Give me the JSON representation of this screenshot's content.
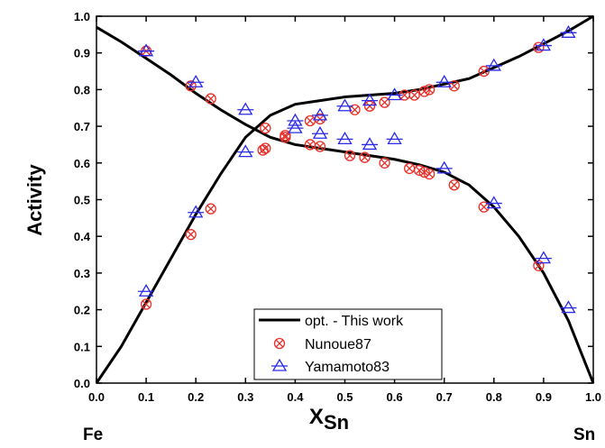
{
  "chart_data": {
    "type": "scatter",
    "ylabel": "Activity",
    "xlabel": "X",
    "xlabel_sub": "Sn",
    "annotations": [
      "Fe",
      "Sn"
    ],
    "xlim": [
      0,
      1
    ],
    "ylim": [
      0,
      1
    ],
    "xticks": [
      {
        "value": 0,
        "label": "0.0"
      },
      {
        "value": 0.1,
        "label": "0.1"
      },
      {
        "value": 0.2,
        "label": "0.2"
      },
      {
        "value": 0.3,
        "label": "0.3"
      },
      {
        "value": 0.4,
        "label": "0.4"
      },
      {
        "value": 0.5,
        "label": "0.5"
      },
      {
        "value": 0.6,
        "label": "0.6"
      },
      {
        "value": 0.7,
        "label": "0.7"
      },
      {
        "value": 0.8,
        "label": "0.8"
      },
      {
        "value": 0.9,
        "label": "0.9"
      },
      {
        "value": 1,
        "label": "1.0"
      }
    ],
    "yticks": [
      {
        "value": 0,
        "label": "0.0"
      },
      {
        "value": 0.1,
        "label": "0.1"
      },
      {
        "value": 0.2,
        "label": "0.2"
      },
      {
        "value": 0.3,
        "label": "0.3"
      },
      {
        "value": 0.4,
        "label": "0.4"
      },
      {
        "value": 0.5,
        "label": "0.5"
      },
      {
        "value": 0.6,
        "label": "0.6"
      },
      {
        "value": 0.7,
        "label": "0.7"
      },
      {
        "value": 0.8,
        "label": "0.8"
      },
      {
        "value": 0.9,
        "label": "0.9"
      },
      {
        "value": 1,
        "label": "1.0"
      }
    ],
    "lines": {
      "name": "opt. - This work",
      "color": "#000000",
      "curves": [
        {
          "x": [
            0,
            0.05,
            0.1,
            0.15,
            0.2,
            0.25,
            0.3,
            0.35,
            0.4,
            0.45,
            0.5,
            0.55,
            0.6,
            0.65,
            0.7,
            0.75,
            0.8,
            0.85,
            0.9,
            0.95,
            1
          ],
          "values": [
            0,
            0.1,
            0.22,
            0.34,
            0.46,
            0.57,
            0.67,
            0.73,
            0.76,
            0.77,
            0.78,
            0.785,
            0.79,
            0.8,
            0.815,
            0.83,
            0.86,
            0.89,
            0.925,
            0.96,
            1
          ]
        },
        {
          "x": [
            0,
            0.05,
            0.1,
            0.15,
            0.2,
            0.25,
            0.3,
            0.35,
            0.4,
            0.45,
            0.5,
            0.55,
            0.6,
            0.65,
            0.7,
            0.75,
            0.8,
            0.85,
            0.9,
            0.95,
            1
          ],
          "values": [
            0.97,
            0.93,
            0.885,
            0.84,
            0.79,
            0.745,
            0.705,
            0.67,
            0.65,
            0.64,
            0.63,
            0.62,
            0.61,
            0.595,
            0.575,
            0.54,
            0.48,
            0.4,
            0.3,
            0.17,
            0
          ]
        }
      ]
    },
    "series": [
      {
        "name": "Nunoue87",
        "color": "#e8302a",
        "marker": "circle-x",
        "x": [
          0.1,
          0.1,
          0.19,
          0.19,
          0.23,
          0.23,
          0.335,
          0.34,
          0.34,
          0.38,
          0.38,
          0.43,
          0.43,
          0.45,
          0.45,
          0.51,
          0.52,
          0.54,
          0.55,
          0.58,
          0.58,
          0.62,
          0.63,
          0.64,
          0.65,
          0.66,
          0.66,
          0.67,
          0.67,
          0.72,
          0.72,
          0.78,
          0.78,
          0.89,
          0.89
        ],
        "values": [
          0.905,
          0.215,
          0.81,
          0.405,
          0.775,
          0.475,
          0.635,
          0.695,
          0.64,
          0.675,
          0.67,
          0.715,
          0.65,
          0.72,
          0.645,
          0.62,
          0.745,
          0.615,
          0.755,
          0.6,
          0.765,
          0.785,
          0.585,
          0.785,
          0.58,
          0.795,
          0.575,
          0.8,
          0.57,
          0.54,
          0.81,
          0.85,
          0.48,
          0.915,
          0.32
        ]
      },
      {
        "name": "Yamamoto83",
        "color": "#2a2ae8",
        "marker": "triangle",
        "x": [
          0.1,
          0.1,
          0.2,
          0.2,
          0.3,
          0.3,
          0.4,
          0.4,
          0.45,
          0.45,
          0.5,
          0.5,
          0.55,
          0.55,
          0.6,
          0.6,
          0.7,
          0.7,
          0.8,
          0.8,
          0.9,
          0.9,
          0.95,
          0.95
        ],
        "values": [
          0.905,
          0.25,
          0.82,
          0.465,
          0.745,
          0.63,
          0.715,
          0.695,
          0.73,
          0.68,
          0.755,
          0.665,
          0.77,
          0.65,
          0.785,
          0.665,
          0.82,
          0.585,
          0.865,
          0.49,
          0.92,
          0.34,
          0.955,
          0.205
        ]
      }
    ]
  }
}
